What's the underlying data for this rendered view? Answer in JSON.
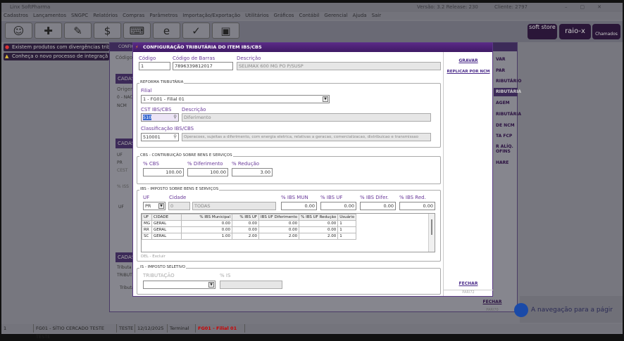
{
  "app": {
    "title": "Linx SoftPharma",
    "version": "Versão: 3.2 Release: 230",
    "client": "Cliente: 2797"
  },
  "menu": [
    "Cadastros",
    "Lançamentos",
    "SNGPC",
    "Relatórios",
    "Compras",
    "Parâmetros",
    "Importação/Exportação",
    "Utilitários",
    "Gráficos",
    "Contábil",
    "Gerencial",
    "Ajuda",
    "Sair"
  ],
  "toolbar": {
    "icons": [
      "smiley-icon",
      "first-aid-icon",
      "pen-icon",
      "dollar-icon",
      "keyboard-icon",
      "internet-icon",
      "checklist-icon",
      "box-icon"
    ],
    "glyphs": [
      "☺",
      "✚",
      "✎",
      "$",
      "⌨",
      "e",
      "✓",
      "▣"
    ],
    "brand": [
      "soft store",
      "raio-x",
      "Chamados"
    ]
  },
  "notices": [
    "Existem produtos com divergências trib",
    "Conheça o novo processo de integraçã"
  ],
  "bg_window": {
    "title": "CONFIG",
    "labels": [
      "Código",
      "CADAS",
      "Origem",
      "0 - NAC",
      "NCM",
      "CADAS",
      "UF",
      "PR",
      "CEST",
      "% ISS",
      "UF",
      "CADAS",
      "Tributa",
      "TRIBUT",
      "Tributa"
    ],
    "side": [
      "VAR",
      "PAR",
      "RIBUTÁRIO",
      "RIBUTÁRIA",
      "AGEM",
      "RIBUTÁRIA",
      "DE NCM",
      "TA FCP",
      "R ALÍQ. OFINS",
      "HARE"
    ],
    "close": "FECHAR",
    "code": "PARI70"
  },
  "modal": {
    "title": "CONFIGURAÇÃO TRIBUTÁRIA DO ITEM IBS/CBS",
    "codigo_label": "Código",
    "codigo": "1",
    "barras_label": "Código de Barras",
    "barras": "7896339812017",
    "descricao_label": "Descrição",
    "descricao": "SELIMAX 600 MG PO P/SUSP",
    "reforma": {
      "title": "REFORMA TRIBUTÁRIA",
      "filial_label": "Filial",
      "filial": "1 - FG01 - Filial 01",
      "cst_label": "CST IBS/CBS",
      "cst": "510",
      "cst_desc_label": "Descrição",
      "cst_desc": "Diferimento",
      "class_label": "Classificação IBS/CBS",
      "class": "510001",
      "class_desc": "Operacoes, sujeitas a diferimento, com energia eletrica, relativas a geracao, comercializacao, distribuicao e transmissao"
    },
    "cbs": {
      "title": "CBS - CONTRIBUIÇÃO SOBRE BENS E SERVIÇOS",
      "cbs_label": "% CBS",
      "cbs": "100.00",
      "dif_label": "% Diferimento",
      "dif": "100.00",
      "red_label": "% Redução",
      "red": "3.00"
    },
    "ibs": {
      "title": "IBS - IMPOSTO SOBRE BENS E SERVIÇOS",
      "uf_label": "UF",
      "uf": "PR",
      "cidade_label": "Cidade",
      "cidade_code": "0",
      "cidade": "TODAS",
      "mun_label": "% IBS MUN",
      "mun": "0.00",
      "ufp_label": "% IBS UF",
      "ufp": "0.00",
      "difer_label": "% IBS Difer.",
      "difer": "0.00",
      "red_label": "% IBS Red.",
      "red": "0.00",
      "columns": [
        "UF",
        "CIDADE",
        "% IBS Municipal",
        "% IBS UF",
        "IBS UF Diferimento",
        "% IBS UF Redução",
        "Usuário"
      ],
      "rows": [
        [
          "MG",
          "GERAL",
          "0.00",
          "0.00",
          "0.00",
          "0.00",
          "1"
        ],
        [
          "RR",
          "GERAL",
          "0.00",
          "0.00",
          "0.00",
          "0.00",
          "1"
        ],
        [
          "SC",
          "GERAL",
          "1.00",
          "2.00",
          "2.00",
          "2.00",
          "1"
        ]
      ],
      "del_hint": "DEL - Excluir"
    },
    "is": {
      "title": "IS - IMPOSTO SELETIVO",
      "trib_label": "TRIBUTAÇÃO",
      "trib": "",
      "is_label": "% IS",
      "is": ""
    },
    "gravar": "GRAVAR",
    "replicar": "REPLICAR POR NCM",
    "fechar": "FECHAR",
    "code": "PARI72"
  },
  "notification": "A navegação para a págir",
  "status": {
    "user": "1",
    "filial_full": "FG01 - SÍTIO CERCADO TESTE TESTE",
    "teste": "TESTE",
    "date": "12/12/2025",
    "terminal": "Terminal",
    "filial": "FG01 - Filial 01"
  },
  "colors": {
    "accent": "#5a2a86",
    "status_filial": "#cc0000"
  }
}
